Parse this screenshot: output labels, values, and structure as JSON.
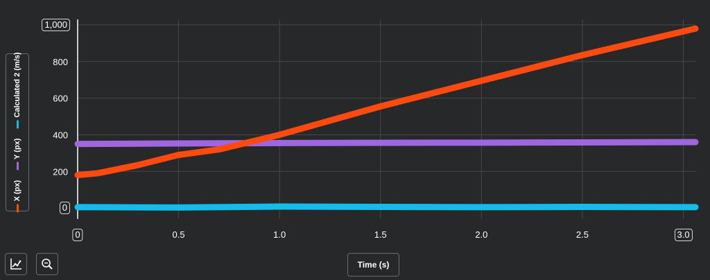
{
  "chart_data": {
    "type": "line",
    "xlabel": "Time (s)",
    "xlim": [
      0,
      3.06
    ],
    "ylim": [
      -60,
      1030
    ],
    "x_ticks": [
      0,
      0.5,
      1.0,
      1.5,
      2.0,
      2.5,
      3.0
    ],
    "x_tick_labels": [
      "0",
      "0.5",
      "1.0",
      "1.5",
      "2.0",
      "2.5",
      "3.0"
    ],
    "y_ticks": [
      0,
      200,
      400,
      600,
      800,
      1000
    ],
    "y_tick_labels": [
      "0",
      "200",
      "400",
      "600",
      "800",
      "1,000"
    ],
    "grid": true,
    "legend_position": "left",
    "series": [
      {
        "name": "X (px)",
        "color": "#ff4a0f",
        "x": [
          0,
          0.1,
          0.3,
          0.5,
          0.7,
          1.0,
          1.5,
          2.0,
          2.5,
          3.06
        ],
        "y": [
          180,
          190,
          235,
          290,
          320,
          400,
          555,
          695,
          835,
          980
        ]
      },
      {
        "name": "Y (px)",
        "color": "#a066e0",
        "x": [
          0,
          1.0,
          2.0,
          3.06
        ],
        "y": [
          350,
          355,
          357,
          360
        ]
      },
      {
        "name": "Calculated 2 (m/s)",
        "color": "#12bde9",
        "x": [
          0,
          0.5,
          1.0,
          1.5,
          2.0,
          2.5,
          3.06
        ],
        "y": [
          5,
          3,
          8,
          6,
          5,
          6,
          5
        ]
      }
    ]
  }
}
